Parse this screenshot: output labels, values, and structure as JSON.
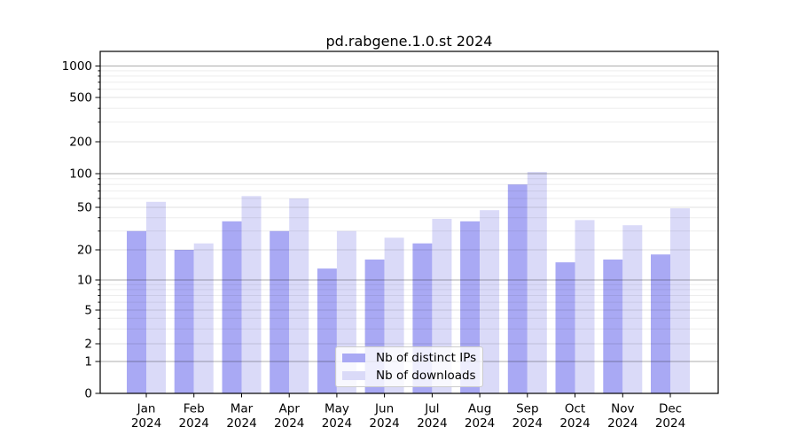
{
  "chart_data": {
    "type": "bar",
    "title": "pd.rabgene.1.0.st 2024",
    "months": [
      "Jan",
      "Feb",
      "Mar",
      "Apr",
      "May",
      "Jun",
      "Jul",
      "Aug",
      "Sep",
      "Oct",
      "Nov",
      "Dec"
    ],
    "year": "2024",
    "y_ticks": [
      0,
      1,
      2,
      5,
      10,
      20,
      50,
      100,
      200,
      500,
      1000
    ],
    "y_scale": "log-like (symlog with 0 baseline)",
    "ylim": [
      0,
      1300
    ],
    "grid": "on",
    "series": [
      {
        "name": "Nb of distinct IPs",
        "color": "#a9a9f4",
        "values": [
          30,
          20,
          37,
          30,
          13,
          16,
          23,
          37,
          80,
          15,
          16,
          18
        ]
      },
      {
        "name": "Nb of downloads",
        "color": "#dadaf8",
        "values": [
          56,
          23,
          63,
          60,
          30,
          26,
          39,
          47,
          104,
          38,
          34,
          49
        ]
      }
    ],
    "legend_position": "lower center"
  },
  "colors": {
    "background": "#ffffff",
    "spine": "#000000",
    "grid_decade": "rgba(0,0,0,0.32)",
    "grid_labeled": "rgba(0,0,0,0.12)",
    "grid_minor": "rgba(0,0,0,0.07)",
    "tick_label": "#000000"
  }
}
